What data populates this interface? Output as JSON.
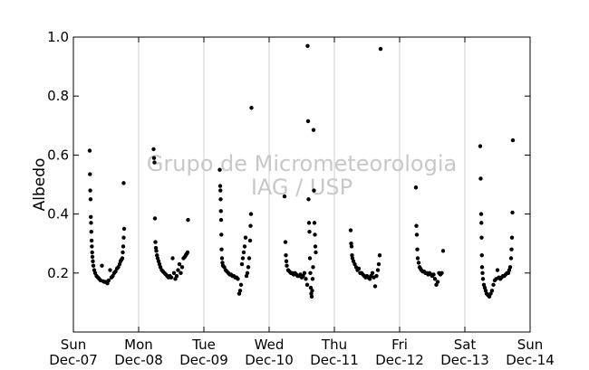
{
  "chart_data": {
    "type": "scatter",
    "title": "",
    "xlabel": "",
    "ylabel": "Albedo",
    "ylim": [
      0.0,
      1.0
    ],
    "yticks": [
      "0.2",
      "0.4",
      "0.6",
      "0.8",
      "1.0"
    ],
    "xlim": [
      "2008-12-07",
      "2008-12-14"
    ],
    "xticks": [
      {
        "day": "Sun",
        "date": "Dec-07"
      },
      {
        "day": "Mon",
        "date": "Dec-08"
      },
      {
        "day": "Tue",
        "date": "Dec-09"
      },
      {
        "day": "Wed",
        "date": "Dec-10"
      },
      {
        "day": "Thu",
        "date": "Dec-11"
      },
      {
        "day": "Fri",
        "date": "Dec-12"
      },
      {
        "day": "Sat",
        "date": "Dec-13"
      },
      {
        "day": "Sun",
        "date": "Dec-14"
      }
    ],
    "grid": "vertical-lines",
    "marker_color": "#000000",
    "watermark": [
      "Grupo de Micrometeorologia",
      "IAG / USP"
    ],
    "series": [
      {
        "points": [
          [
            "2008-12-07 06:00",
            0.615
          ],
          [
            "2008-12-07 06:06",
            0.535
          ],
          [
            "2008-12-07 06:12",
            0.48
          ],
          [
            "2008-12-07 06:18",
            0.45
          ],
          [
            "2008-12-07 06:24",
            0.39
          ],
          [
            "2008-12-07 06:30",
            0.37
          ],
          [
            "2008-12-07 06:36",
            0.34
          ],
          [
            "2008-12-07 06:42",
            0.31
          ],
          [
            "2008-12-07 06:48",
            0.29
          ],
          [
            "2008-12-07 06:54",
            0.27
          ],
          [
            "2008-12-07 07:00",
            0.255
          ],
          [
            "2008-12-07 07:10",
            0.24
          ],
          [
            "2008-12-07 07:20",
            0.225
          ],
          [
            "2008-12-07 07:40",
            0.21
          ],
          [
            "2008-12-07 08:00",
            0.2
          ],
          [
            "2008-12-07 08:30",
            0.19
          ],
          [
            "2008-12-07 09:00",
            0.185
          ],
          [
            "2008-12-07 09:30",
            0.18
          ],
          [
            "2008-12-07 10:00",
            0.175
          ],
          [
            "2008-12-07 10:30",
            0.225
          ],
          [
            "2008-12-07 11:00",
            0.172
          ],
          [
            "2008-12-07 11:30",
            0.17
          ],
          [
            "2008-12-07 12:00",
            0.17
          ],
          [
            "2008-12-07 12:30",
            0.165
          ],
          [
            "2008-12-07 13:00",
            0.175
          ],
          [
            "2008-12-07 13:30",
            0.21
          ],
          [
            "2008-12-07 14:00",
            0.185
          ],
          [
            "2008-12-07 14:30",
            0.19
          ],
          [
            "2008-12-07 15:00",
            0.2
          ],
          [
            "2008-12-07 15:30",
            0.205
          ],
          [
            "2008-12-07 16:00",
            0.215
          ],
          [
            "2008-12-07 16:30",
            0.22
          ],
          [
            "2008-12-07 17:00",
            0.23
          ],
          [
            "2008-12-07 17:20",
            0.24
          ],
          [
            "2008-12-07 17:40",
            0.245
          ],
          [
            "2008-12-07 18:00",
            0.25
          ],
          [
            "2008-12-07 18:10",
            0.27
          ],
          [
            "2008-12-07 18:20",
            0.29
          ],
          [
            "2008-12-07 18:30",
            0.32
          ],
          [
            "2008-12-07 18:40",
            0.35
          ],
          [
            "2008-12-07 18:30",
            0.505
          ],
          [
            "2008-12-08 05:30",
            0.62
          ],
          [
            "2008-12-08 05:40",
            0.59
          ],
          [
            "2008-12-08 05:50",
            0.575
          ],
          [
            "2008-12-08 06:00",
            0.385
          ],
          [
            "2008-12-08 06:10",
            0.305
          ],
          [
            "2008-12-08 06:20",
            0.285
          ],
          [
            "2008-12-08 06:30",
            0.275
          ],
          [
            "2008-12-08 06:45",
            0.26
          ],
          [
            "2008-12-08 07:00",
            0.25
          ],
          [
            "2008-12-08 07:20",
            0.24
          ],
          [
            "2008-12-08 07:40",
            0.23
          ],
          [
            "2008-12-08 08:00",
            0.22
          ],
          [
            "2008-12-08 08:30",
            0.21
          ],
          [
            "2008-12-08 09:00",
            0.205
          ],
          [
            "2008-12-08 09:30",
            0.2
          ],
          [
            "2008-12-08 10:00",
            0.195
          ],
          [
            "2008-12-08 10:30",
            0.19
          ],
          [
            "2008-12-08 11:00",
            0.185
          ],
          [
            "2008-12-08 11:30",
            0.19
          ],
          [
            "2008-12-08 12:00",
            0.185
          ],
          [
            "2008-12-08 12:30",
            0.25
          ],
          [
            "2008-12-08 13:00",
            0.2
          ],
          [
            "2008-12-08 13:30",
            0.18
          ],
          [
            "2008-12-08 14:00",
            0.19
          ],
          [
            "2008-12-08 14:30",
            0.21
          ],
          [
            "2008-12-08 15:00",
            0.23
          ],
          [
            "2008-12-08 15:30",
            0.2
          ],
          [
            "2008-12-08 16:00",
            0.22
          ],
          [
            "2008-12-08 16:30",
            0.25
          ],
          [
            "2008-12-08 17:00",
            0.255
          ],
          [
            "2008-12-08 17:20",
            0.26
          ],
          [
            "2008-12-08 17:40",
            0.265
          ],
          [
            "2008-12-08 18:00",
            0.27
          ],
          [
            "2008-12-08 18:10",
            0.38
          ],
          [
            "2008-12-09 05:50",
            0.55
          ],
          [
            "2008-12-09 06:00",
            0.495
          ],
          [
            "2008-12-09 06:05",
            0.48
          ],
          [
            "2008-12-09 06:10",
            0.45
          ],
          [
            "2008-12-09 06:15",
            0.41
          ],
          [
            "2008-12-09 06:20",
            0.38
          ],
          [
            "2008-12-09 06:25",
            0.33
          ],
          [
            "2008-12-09 06:30",
            0.28
          ],
          [
            "2008-12-09 06:40",
            0.25
          ],
          [
            "2008-12-09 06:50",
            0.235
          ],
          [
            "2008-12-09 07:00",
            0.225
          ],
          [
            "2008-12-09 07:30",
            0.22
          ],
          [
            "2008-12-09 08:00",
            0.21
          ],
          [
            "2008-12-09 08:30",
            0.205
          ],
          [
            "2008-12-09 09:00",
            0.2
          ],
          [
            "2008-12-09 09:30",
            0.195
          ],
          [
            "2008-12-09 10:00",
            0.195
          ],
          [
            "2008-12-09 10:30",
            0.19
          ],
          [
            "2008-12-09 11:00",
            0.19
          ],
          [
            "2008-12-09 11:30",
            0.185
          ],
          [
            "2008-12-09 12:00",
            0.185
          ],
          [
            "2008-12-09 12:30",
            0.18
          ],
          [
            "2008-12-09 13:00",
            0.13
          ],
          [
            "2008-12-09 13:20",
            0.14
          ],
          [
            "2008-12-09 13:40",
            0.16
          ],
          [
            "2008-12-09 14:00",
            0.23
          ],
          [
            "2008-12-09 14:20",
            0.25
          ],
          [
            "2008-12-09 14:40",
            0.27
          ],
          [
            "2008-12-09 15:00",
            0.29
          ],
          [
            "2008-12-09 15:20",
            0.32
          ],
          [
            "2008-12-09 15:40",
            0.19
          ],
          [
            "2008-12-09 16:00",
            0.2
          ],
          [
            "2008-12-09 16:20",
            0.22
          ],
          [
            "2008-12-09 16:40",
            0.25
          ],
          [
            "2008-12-09 17:00",
            0.31
          ],
          [
            "2008-12-09 17:10",
            0.36
          ],
          [
            "2008-12-09 17:20",
            0.4
          ],
          [
            "2008-12-09 17:30",
            0.76
          ],
          [
            "2008-12-10 05:40",
            0.46
          ],
          [
            "2008-12-10 06:00",
            0.305
          ],
          [
            "2008-12-10 06:10",
            0.26
          ],
          [
            "2008-12-10 06:20",
            0.24
          ],
          [
            "2008-12-10 06:30",
            0.225
          ],
          [
            "2008-12-10 07:00",
            0.21
          ],
          [
            "2008-12-10 07:30",
            0.205
          ],
          [
            "2008-12-10 08:00",
            0.2
          ],
          [
            "2008-12-10 08:30",
            0.2
          ],
          [
            "2008-12-10 09:00",
            0.195
          ],
          [
            "2008-12-10 09:30",
            0.2
          ],
          [
            "2008-12-10 10:00",
            0.195
          ],
          [
            "2008-12-10 10:30",
            0.19
          ],
          [
            "2008-12-10 11:00",
            0.19
          ],
          [
            "2008-12-10 11:30",
            0.195
          ],
          [
            "2008-12-10 12:00",
            0.185
          ],
          [
            "2008-12-10 12:30",
            0.19
          ],
          [
            "2008-12-10 13:00",
            0.2
          ],
          [
            "2008-12-10 13:30",
            0.18
          ],
          [
            "2008-12-10 14:00",
            0.16
          ],
          [
            "2008-12-10 14:10",
            0.97
          ],
          [
            "2008-12-10 14:20",
            0.715
          ],
          [
            "2008-12-10 14:30",
            0.45
          ],
          [
            "2008-12-10 14:40",
            0.37
          ],
          [
            "2008-12-10 14:50",
            0.34
          ],
          [
            "2008-12-10 15:00",
            0.25
          ],
          [
            "2008-12-10 15:10",
            0.2
          ],
          [
            "2008-12-10 15:20",
            0.15
          ],
          [
            "2008-12-10 15:30",
            0.13
          ],
          [
            "2008-12-10 15:40",
            0.12
          ],
          [
            "2008-12-10 15:50",
            0.14
          ],
          [
            "2008-12-10 16:00",
            0.18
          ],
          [
            "2008-12-10 16:10",
            0.22
          ],
          [
            "2008-12-10 16:20",
            0.685
          ],
          [
            "2008-12-10 16:30",
            0.48
          ],
          [
            "2008-12-10 16:40",
            0.37
          ],
          [
            "2008-12-10 16:50",
            0.33
          ],
          [
            "2008-12-10 17:00",
            0.29
          ],
          [
            "2008-12-10 17:10",
            0.27
          ],
          [
            "2008-12-11 06:00",
            0.345
          ],
          [
            "2008-12-11 06:10",
            0.3
          ],
          [
            "2008-12-11 06:20",
            0.29
          ],
          [
            "2008-12-11 06:30",
            0.26
          ],
          [
            "2008-12-11 06:40",
            0.25
          ],
          [
            "2008-12-11 07:00",
            0.24
          ],
          [
            "2008-12-11 07:30",
            0.23
          ],
          [
            "2008-12-11 08:00",
            0.22
          ],
          [
            "2008-12-11 08:30",
            0.21
          ],
          [
            "2008-12-11 09:00",
            0.215
          ],
          [
            "2008-12-11 09:30",
            0.2
          ],
          [
            "2008-12-11 10:00",
            0.2
          ],
          [
            "2008-12-11 10:30",
            0.195
          ],
          [
            "2008-12-11 11:00",
            0.19
          ],
          [
            "2008-12-11 11:30",
            0.185
          ],
          [
            "2008-12-11 12:00",
            0.19
          ],
          [
            "2008-12-11 12:30",
            0.185
          ],
          [
            "2008-12-11 13:00",
            0.18
          ],
          [
            "2008-12-11 13:30",
            0.19
          ],
          [
            "2008-12-11 14:00",
            0.2
          ],
          [
            "2008-12-11 14:30",
            0.185
          ],
          [
            "2008-12-11 15:00",
            0.155
          ],
          [
            "2008-12-11 15:30",
            0.19
          ],
          [
            "2008-12-11 16:00",
            0.21
          ],
          [
            "2008-12-11 16:20",
            0.23
          ],
          [
            "2008-12-11 16:40",
            0.26
          ],
          [
            "2008-12-11 17:00",
            0.96
          ],
          [
            "2008-12-12 06:00",
            0.49
          ],
          [
            "2008-12-12 06:10",
            0.36
          ],
          [
            "2008-12-12 06:20",
            0.33
          ],
          [
            "2008-12-12 06:30",
            0.28
          ],
          [
            "2008-12-12 06:40",
            0.25
          ],
          [
            "2008-12-12 07:00",
            0.235
          ],
          [
            "2008-12-12 07:20",
            0.22
          ],
          [
            "2008-12-12 07:40",
            0.215
          ],
          [
            "2008-12-12 08:00",
            0.21
          ],
          [
            "2008-12-12 08:30",
            0.205
          ],
          [
            "2008-12-12 09:00",
            0.205
          ],
          [
            "2008-12-12 09:30",
            0.2
          ],
          [
            "2008-12-12 10:00",
            0.2
          ],
          [
            "2008-12-12 10:30",
            0.195
          ],
          [
            "2008-12-12 11:00",
            0.2
          ],
          [
            "2008-12-12 11:30",
            0.195
          ],
          [
            "2008-12-12 12:00",
            0.19
          ],
          [
            "2008-12-12 12:30",
            0.195
          ],
          [
            "2008-12-12 13:00",
            0.18
          ],
          [
            "2008-12-12 13:30",
            0.16
          ],
          [
            "2008-12-12 14:00",
            0.17
          ],
          [
            "2008-12-12 14:30",
            0.2
          ],
          [
            "2008-12-12 15:00",
            0.195
          ],
          [
            "2008-12-12 15:30",
            0.2
          ],
          [
            "2008-12-12 16:00",
            0.275
          ],
          [
            "2008-12-13 05:40",
            0.63
          ],
          [
            "2008-12-13 05:50",
            0.52
          ],
          [
            "2008-12-13 06:00",
            0.4
          ],
          [
            "2008-12-13 06:05",
            0.37
          ],
          [
            "2008-12-13 06:10",
            0.32
          ],
          [
            "2008-12-13 06:15",
            0.26
          ],
          [
            "2008-12-13 06:20",
            0.22
          ],
          [
            "2008-12-13 06:30",
            0.2
          ],
          [
            "2008-12-13 06:40",
            0.18
          ],
          [
            "2008-12-13 07:00",
            0.16
          ],
          [
            "2008-12-13 07:20",
            0.15
          ],
          [
            "2008-12-13 07:40",
            0.14
          ],
          [
            "2008-12-13 08:00",
            0.13
          ],
          [
            "2008-12-13 08:30",
            0.125
          ],
          [
            "2008-12-13 09:00",
            0.12
          ],
          [
            "2008-12-13 09:30",
            0.13
          ],
          [
            "2008-12-13 10:00",
            0.14
          ],
          [
            "2008-12-13 10:30",
            0.16
          ],
          [
            "2008-12-13 11:00",
            0.175
          ],
          [
            "2008-12-13 11:30",
            0.18
          ],
          [
            "2008-12-13 12:00",
            0.21
          ],
          [
            "2008-12-13 12:30",
            0.185
          ],
          [
            "2008-12-13 13:00",
            0.18
          ],
          [
            "2008-12-13 13:30",
            0.185
          ],
          [
            "2008-12-13 14:00",
            0.19
          ],
          [
            "2008-12-13 14:30",
            0.19
          ],
          [
            "2008-12-13 15:00",
            0.195
          ],
          [
            "2008-12-13 15:30",
            0.2
          ],
          [
            "2008-12-13 16:00",
            0.2
          ],
          [
            "2008-12-13 16:20",
            0.21
          ],
          [
            "2008-12-13 16:40",
            0.22
          ],
          [
            "2008-12-13 17:00",
            0.25
          ],
          [
            "2008-12-13 17:10",
            0.28
          ],
          [
            "2008-12-13 17:20",
            0.32
          ],
          [
            "2008-12-13 17:30",
            0.405
          ],
          [
            "2008-12-13 17:40",
            0.65
          ]
        ]
      }
    ]
  }
}
